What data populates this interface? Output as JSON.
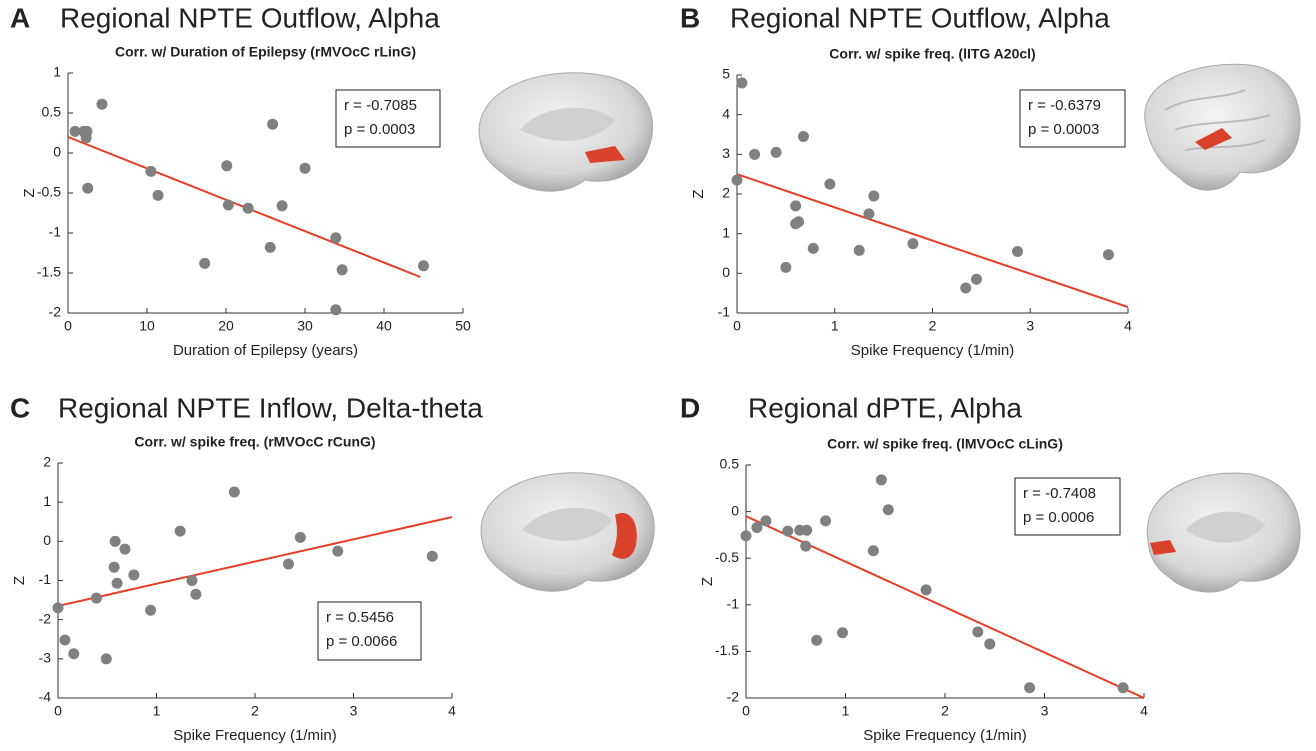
{
  "chart_data": [
    {
      "type": "scatter",
      "panel": "A",
      "title": "Regional NPTE Outflow, Alpha",
      "subtitle": "Corr. w/ Duration of Epilepsy (rMVOcC rLinG)",
      "xlabel": "Duration of Epilepsy (years)",
      "ylabel": "Z",
      "color": "#808080",
      "x": [
        0.9,
        2.0,
        2.4,
        2.3,
        4.3,
        2.5,
        10.5,
        11.4,
        17.3,
        20.1,
        20.3,
        22.8,
        25.9,
        25.6,
        27.1,
        30.0,
        33.9,
        33.9,
        34.7,
        45.0
      ],
      "y": [
        0.27,
        0.27,
        0.27,
        0.19,
        0.61,
        -0.44,
        -0.23,
        -0.53,
        -1.38,
        -0.16,
        -0.65,
        -0.69,
        0.36,
        -1.18,
        -0.66,
        -0.19,
        -1.06,
        -1.96,
        -1.46,
        -1.41
      ],
      "fit_line": {
        "x": [
          0,
          44.6
        ],
        "y": [
          0.2,
          -1.55
        ],
        "color": "#ea3b24"
      },
      "annotation": [
        "r = -0.7085",
        "p = 0.0003"
      ],
      "xlim": [
        0,
        50
      ],
      "ylim": [
        -2,
        1
      ],
      "xticks": [
        0,
        10,
        20,
        30,
        40,
        50
      ],
      "yticks": [
        -2,
        -1.5,
        -1,
        -0.5,
        0,
        0.5,
        1
      ]
    },
    {
      "type": "scatter",
      "panel": "B",
      "title": "Regional NPTE Outflow, Alpha",
      "subtitle": "Corr. w/ spike freq. (lITG A20cl)",
      "xlabel": "Spike Frequency (1/min)",
      "ylabel": "Z",
      "color": "#808080",
      "x": [
        0,
        0.05,
        0.18,
        0.4,
        0.68,
        0.6,
        0.6,
        0.63,
        0.5,
        0.78,
        0.95,
        1.35,
        1.4,
        1.25,
        1.8,
        2.34,
        2.45,
        2.87,
        3.8
      ],
      "y": [
        2.35,
        4.8,
        3.0,
        3.05,
        3.45,
        1.7,
        1.25,
        1.3,
        0.15,
        0.63,
        2.25,
        1.5,
        1.95,
        0.58,
        0.75,
        -0.37,
        -0.15,
        0.55,
        0.47
      ],
      "fit_line": {
        "x": [
          0,
          4
        ],
        "y": [
          2.5,
          -0.85
        ],
        "color": "#ea3b24"
      },
      "annotation": [
        "r = -0.6379",
        "p = 0.0003"
      ],
      "xlim": [
        0,
        4
      ],
      "ylim": [
        -1,
        5
      ],
      "xticks": [
        0,
        1,
        2,
        3,
        4
      ],
      "yticks": [
        -1,
        0,
        1,
        2,
        3,
        4,
        5
      ]
    },
    {
      "type": "scatter",
      "panel": "C",
      "title": "Regional NPTE Inflow, Delta-theta",
      "subtitle": "Corr. w/ spike freq. (rMVOcC rCunG)",
      "xlabel": "Spike Frequency (1/min)",
      "ylabel": "Z",
      "color": "#808080",
      "x": [
        0,
        0.07,
        0.16,
        0.49,
        0.39,
        0.58,
        0.57,
        0.6,
        0.68,
        0.77,
        0.94,
        1.24,
        1.36,
        1.4,
        1.79,
        2.34,
        2.46,
        2.84,
        3.8
      ],
      "y": [
        -1.7,
        -2.52,
        -2.87,
        -3.0,
        -1.45,
        0.0,
        -0.66,
        -1.07,
        -0.2,
        -0.86,
        -1.76,
        0.26,
        -1.0,
        -1.35,
        1.26,
        -0.58,
        0.1,
        -0.25,
        -0.38
      ],
      "fit_line": {
        "x": [
          0,
          4
        ],
        "y": [
          -1.65,
          0.62
        ],
        "color": "#ea3b24"
      },
      "annotation": [
        "r = 0.5456",
        "p = 0.0066"
      ],
      "xlim": [
        0,
        4
      ],
      "ylim": [
        -4,
        2
      ],
      "xticks": [
        0,
        1,
        2,
        3,
        4
      ],
      "yticks": [
        -4,
        -3,
        -2,
        -1,
        0,
        1,
        2
      ]
    },
    {
      "type": "scatter",
      "panel": "D",
      "title": "Regional dPTE, Alpha",
      "subtitle": "Corr. w/ spike freq. (lMVOcC cLinG)",
      "xlabel": "Spike Frequency (1/min)",
      "ylabel": "Z",
      "color": "#808080",
      "x": [
        0,
        0.11,
        0.2,
        0.42,
        0.54,
        0.61,
        0.6,
        0.8,
        0.71,
        0.97,
        1.28,
        1.36,
        1.43,
        1.81,
        2.33,
        2.45,
        2.85,
        3.79
      ],
      "y": [
        -0.26,
        -0.17,
        -0.1,
        -0.21,
        -0.2,
        -0.2,
        -0.37,
        -0.1,
        -1.38,
        -1.3,
        -0.42,
        0.34,
        0.02,
        -0.84,
        -1.29,
        -1.42,
        -1.89,
        -1.89
      ],
      "fit_line": {
        "x": [
          0,
          4
        ],
        "y": [
          -0.05,
          -2.0
        ],
        "color": "#ea3b24"
      },
      "annotation": [
        "r = -0.7408",
        "p = 0.0006"
      ],
      "xlim": [
        0,
        4
      ],
      "ylim": [
        -2,
        0.5
      ],
      "xticks": [
        0,
        1,
        2,
        3,
        4
      ],
      "yticks": [
        -2,
        -1.5,
        -1,
        -0.5,
        0,
        0.5
      ]
    }
  ]
}
